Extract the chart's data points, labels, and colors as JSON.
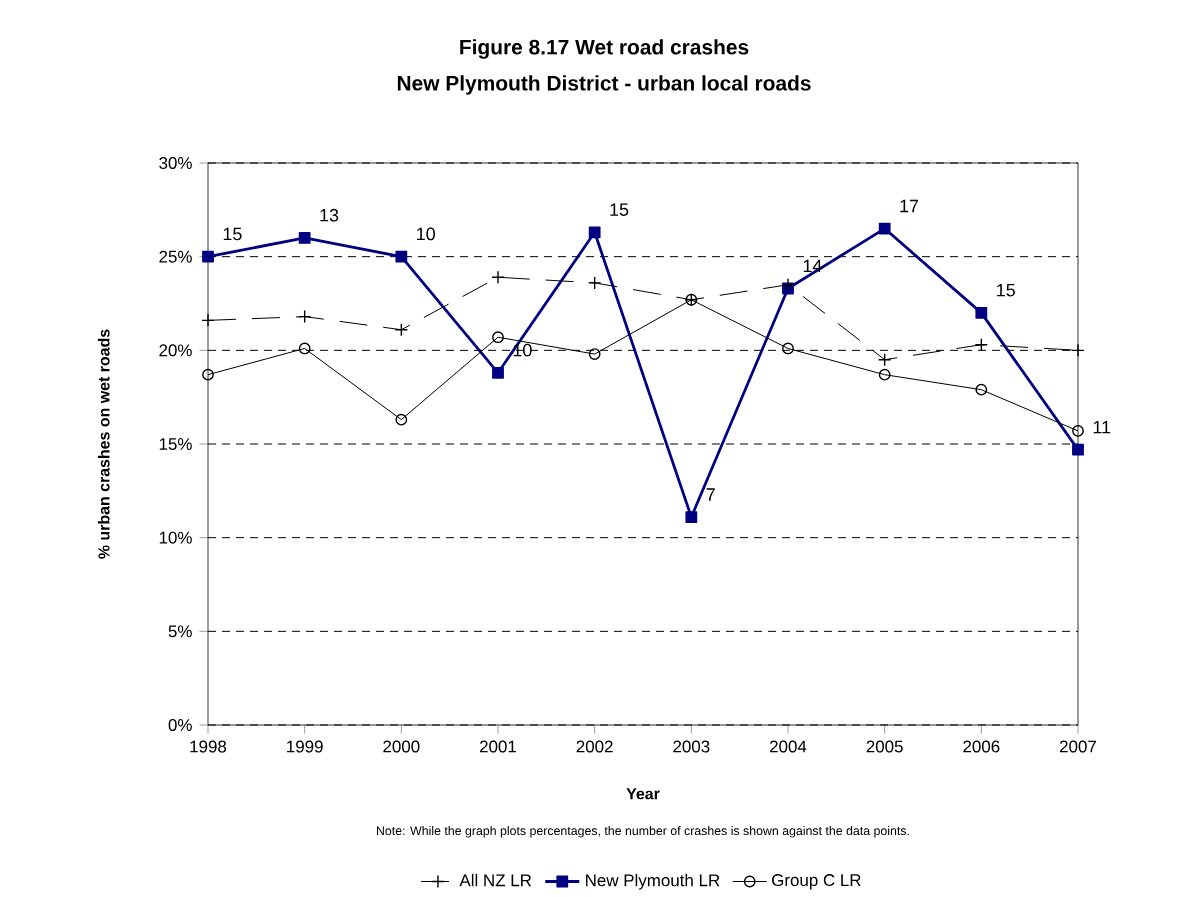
{
  "chart_data": {
    "type": "line",
    "title": "Figure 8.17 Wet road crashes",
    "subtitle": "New Plymouth District - urban local roads",
    "xlabel": "Year",
    "ylabel": "% urban crashes on wet roads",
    "categories": [
      "1998",
      "1999",
      "2000",
      "2001",
      "2002",
      "2003",
      "2004",
      "2005",
      "2006",
      "2007"
    ],
    "series": [
      {
        "name": "All NZ LR",
        "color": "#000000",
        "marker": "cross",
        "line_style": "dashed",
        "values": [
          21.6,
          21.8,
          21.1,
          23.9,
          23.6,
          22.7,
          23.5,
          19.5,
          20.3,
          20.0
        ]
      },
      {
        "name": "New Plymouth  LR",
        "color": "#000080",
        "marker": "square",
        "line_style": "solid",
        "values": [
          25.0,
          26.0,
          25.0,
          18.8,
          26.3,
          11.1,
          23.3,
          26.5,
          22.0,
          14.7
        ]
      },
      {
        "name": "Group C LR",
        "color": "#000000",
        "marker": "circle",
        "line_style": "solid",
        "values": [
          18.7,
          20.1,
          16.3,
          20.7,
          19.8,
          22.7,
          20.1,
          18.7,
          17.9,
          15.7
        ]
      }
    ],
    "ylim": [
      0,
      30
    ],
    "yticks": [
      {
        "value": 0,
        "label": "0%"
      },
      {
        "value": 5,
        "label": "5%"
      },
      {
        "value": 10,
        "label": "10%"
      },
      {
        "value": 15,
        "label": "15%"
      },
      {
        "value": 20,
        "label": "20%"
      },
      {
        "value": 25,
        "label": "25%"
      },
      {
        "value": 30,
        "label": "30%"
      }
    ],
    "grid": "y",
    "legend": "bottom",
    "annotations": [
      "Note: While the graph plots percentages, the number of crashes is shown against the data points.",
      {
        "text": "15",
        "x": "1998",
        "y": 25.0
      },
      {
        "text": "13",
        "x": "1999",
        "y": 26.0
      },
      {
        "text": "10",
        "x": "2000",
        "y": 25.0
      },
      {
        "text": "10",
        "x": "2001",
        "y": 18.8
      },
      {
        "text": "15",
        "x": "2002",
        "y": 26.3
      },
      {
        "text": "7",
        "x": "2003",
        "y": 11.1
      },
      {
        "text": "14",
        "x": "2004",
        "y": 23.3
      },
      {
        "text": "17",
        "x": "2005",
        "y": 26.5
      },
      {
        "text": "15",
        "x": "2006",
        "y": 22.0
      },
      {
        "text": "11",
        "x": "2007",
        "y": 14.7
      }
    ]
  }
}
